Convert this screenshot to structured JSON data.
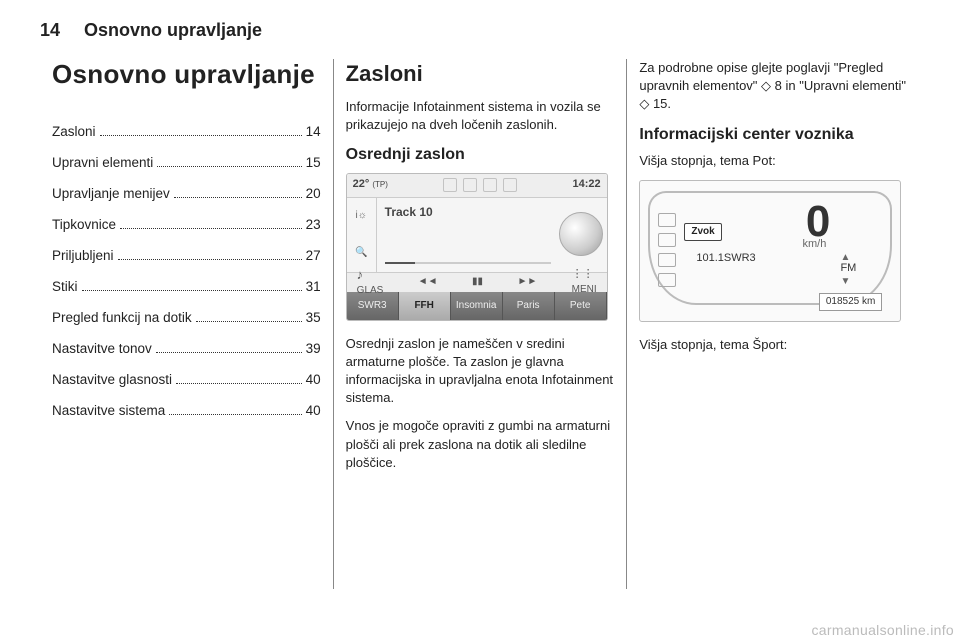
{
  "header": {
    "pageNumber": "14",
    "category": "Osnovno upravljanje"
  },
  "col1": {
    "title": "Osnovno upravljanje",
    "toc": [
      {
        "label": "Zasloni",
        "page": "14"
      },
      {
        "label": "Upravni elementi",
        "page": "15"
      },
      {
        "label": "Upravljanje menijev",
        "page": "20"
      },
      {
        "label": "Tipkovnice",
        "page": "23"
      },
      {
        "label": "Priljubljeni",
        "page": "27"
      },
      {
        "label": "Stiki",
        "page": "31"
      },
      {
        "label": "Pregled funkcij na dotik",
        "page": "35"
      },
      {
        "label": "Nastavitve tonov",
        "page": "39"
      },
      {
        "label": "Nastavitve glasnosti",
        "page": "40"
      },
      {
        "label": "Nastavitve sistema",
        "page": "40"
      }
    ]
  },
  "col2": {
    "h2": "Zasloni",
    "intro": "Informacije Infotainment sistema in vozila se prikazujejo na dveh ločenih zaslonih.",
    "h3": "Osrednji zaslon",
    "p1": "Osrednji zaslon je nameščen v sredini armaturne plošče. Ta zaslon je glavna informacijska in upravljalna enota Infotainment sistema.",
    "p2": "Vnos je mogoče opraviti z gumbi na armaturni plošči ali prek zaslona na dotik ali sledilne ploščice.",
    "display": {
      "temp": "22°",
      "tp": "(TP)",
      "time": "14:22",
      "track": "Track 10",
      "glasLabel": "GLAS",
      "meniLabel": "MENI",
      "prev": "◄◄",
      "pause": "▮▮",
      "next": "►►",
      "tabs": [
        "SWR3",
        "FFH",
        "Insomnia",
        "Paris",
        "Pete"
      ],
      "activeTab": 1,
      "leftIcons": [
        "i☼",
        "🔍"
      ]
    }
  },
  "col3": {
    "p1a": "Za podrobne opise glejte poglavji \"Pregled upravnih elementov\" ",
    "p1ref1": "◇ 8",
    "p1b": " in \"Upravni elementi\" ",
    "p1ref2": "◇ 15",
    "p1c": ".",
    "h3": "Informacijski center voznika",
    "sub": "Višja stopnja, tema Pot:",
    "cluster": {
      "speed": "0",
      "unit": "km/h",
      "tag": "Zvok",
      "radio": "101.1SWR3",
      "band": "FM",
      "odo": "018525 km"
    },
    "sub2": "Višja stopnja, tema Šport:"
  },
  "watermark": "carmanualsonline.info"
}
